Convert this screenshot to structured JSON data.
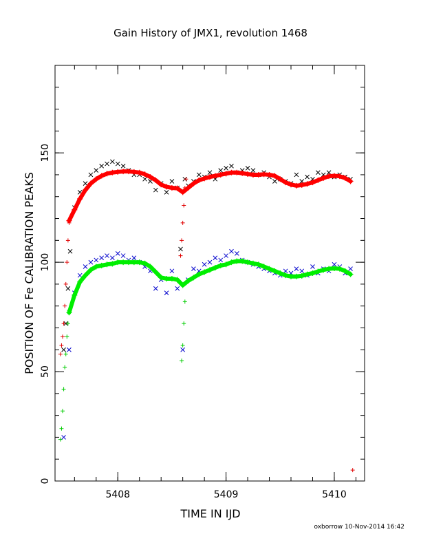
{
  "chart_data": {
    "type": "scatter",
    "title": "Gain History of JMX1, revolution 1468",
    "xlabel": "TIME IN IJD",
    "ylabel": "POSITION OF Fe CALIBRATION PEAKS",
    "footer": "oxborrow 10-Nov-2014 16:42",
    "xlim": [
      5407.42,
      5410.28
    ],
    "ylim": [
      0,
      190
    ],
    "xticks": [
      5408,
      5409,
      5410
    ],
    "xtick_labels": [
      "5408",
      "5409",
      "5410"
    ],
    "yticks": [
      0,
      50,
      100,
      150
    ],
    "ytick_labels": [
      "0",
      "50",
      "100",
      "150"
    ],
    "grid": false,
    "legend": "none",
    "series": [
      {
        "marker": "x",
        "color": "#000000",
        "x": [
          5407.5,
          5407.52,
          5407.54,
          5407.56,
          5407.6,
          5407.65,
          5407.7,
          5407.75,
          5407.8,
          5407.85,
          5407.9,
          5407.95,
          5408.0,
          5408.05,
          5408.1,
          5408.15,
          5408.2,
          5408.25,
          5408.3,
          5408.35,
          5408.4,
          5408.45,
          5408.5,
          5408.55,
          5408.58,
          5408.62,
          5408.65,
          5408.7,
          5408.75,
          5408.8,
          5408.85,
          5408.9,
          5408.95,
          5409.0,
          5409.05,
          5409.1,
          5409.15,
          5409.2,
          5409.25,
          5409.3,
          5409.35,
          5409.4,
          5409.45,
          5409.5,
          5409.55,
          5409.6,
          5409.65,
          5409.7,
          5409.75,
          5409.8,
          5409.85,
          5409.9,
          5409.95,
          5410.0,
          5410.05,
          5410.1,
          5410.15
        ],
        "y": [
          60,
          72,
          88,
          105,
          125,
          132,
          136,
          140,
          142,
          144,
          145,
          146,
          145,
          144,
          142,
          140,
          140,
          138,
          137,
          133,
          136,
          132,
          137,
          134,
          106,
          138,
          135,
          137,
          140,
          139,
          141,
          138,
          142,
          143,
          144,
          141,
          142,
          143,
          142,
          140,
          141,
          139,
          137,
          138,
          137,
          136,
          140,
          137,
          139,
          138,
          141,
          140,
          141,
          139,
          140,
          139,
          138
        ]
      },
      {
        "marker": "plus",
        "color": "#e00000",
        "x": [
          5407.47,
          5407.48,
          5407.49,
          5407.5,
          5407.51,
          5407.52,
          5407.53,
          5407.54,
          5407.55,
          5408.58,
          5408.59,
          5408.6,
          5408.61,
          5408.62,
          5408.63,
          5410.17
        ],
        "y": [
          58,
          62,
          66,
          72,
          80,
          90,
          100,
          110,
          118,
          103,
          110,
          118,
          126,
          134,
          138,
          5
        ]
      },
      {
        "marker": "plus",
        "color": "#00cc00",
        "x": [
          5407.47,
          5407.48,
          5407.49,
          5407.5,
          5407.51,
          5407.52,
          5407.53,
          5407.54,
          5407.55,
          5408.59,
          5408.6,
          5408.61,
          5408.62
        ],
        "y": [
          19,
          24,
          32,
          42,
          52,
          58,
          66,
          72,
          78,
          55,
          62,
          72,
          82
        ]
      },
      {
        "marker": "x",
        "color": "#0000cc",
        "x": [
          5407.5,
          5407.55,
          5407.6,
          5407.65,
          5407.7,
          5407.75,
          5407.8,
          5407.85,
          5407.9,
          5407.95,
          5408.0,
          5408.05,
          5408.1,
          5408.15,
          5408.2,
          5408.25,
          5408.3,
          5408.35,
          5408.4,
          5408.45,
          5408.5,
          5408.55,
          5408.6,
          5408.65,
          5408.7,
          5408.75,
          5408.8,
          5408.85,
          5408.9,
          5408.95,
          5409.0,
          5409.05,
          5409.1,
          5409.15,
          5409.2,
          5409.25,
          5409.3,
          5409.35,
          5409.4,
          5409.45,
          5409.5,
          5409.55,
          5409.6,
          5409.65,
          5409.7,
          5409.75,
          5409.8,
          5409.85,
          5409.9,
          5409.95,
          5410.0,
          5410.05,
          5410.1,
          5410.15
        ],
        "y": [
          20,
          60,
          86,
          94,
          98,
          100,
          101,
          102,
          103,
          102,
          104,
          103,
          101,
          102,
          100,
          98,
          96,
          88,
          92,
          86,
          96,
          88,
          60,
          92,
          97,
          96,
          99,
          100,
          102,
          101,
          103,
          105,
          104,
          101,
          100,
          99,
          98,
          97,
          96,
          95,
          94,
          96,
          95,
          97,
          96,
          94,
          98,
          95,
          97,
          96,
          99,
          98,
          95,
          97
        ]
      },
      {
        "marker": "plus-line",
        "color": "#ff0000",
        "x": [
          5407.55,
          5407.6,
          5407.65,
          5407.7,
          5407.75,
          5407.8,
          5407.85,
          5407.9,
          5407.95,
          5408.0,
          5408.05,
          5408.1,
          5408.15,
          5408.2,
          5408.25,
          5408.3,
          5408.35,
          5408.4,
          5408.45,
          5408.5,
          5408.55,
          5408.6,
          5408.65,
          5408.7,
          5408.75,
          5408.8,
          5408.85,
          5408.9,
          5408.95,
          5409.0,
          5409.05,
          5409.1,
          5409.15,
          5409.2,
          5409.25,
          5409.3,
          5409.35,
          5409.4,
          5409.45,
          5409.5,
          5409.55,
          5409.6,
          5409.65,
          5409.7,
          5409.75,
          5409.8,
          5409.85,
          5409.9,
          5409.95,
          5410.0,
          5410.05,
          5410.1,
          5410.15
        ],
        "y": [
          119,
          124,
          129,
          133,
          136,
          138,
          139.5,
          140.5,
          141,
          141.3,
          141.5,
          141.5,
          141.3,
          141,
          140.2,
          139,
          137.5,
          135.5,
          134.5,
          134,
          133.8,
          132,
          134,
          136,
          137.5,
          138.3,
          139,
          139.5,
          140,
          140.5,
          141,
          141,
          140.7,
          140.3,
          140,
          140,
          140.2,
          140,
          139.5,
          138,
          136.5,
          135.5,
          135,
          135.3,
          135.8,
          136.5,
          137.5,
          138.5,
          139.3,
          139.5,
          139.3,
          138.5,
          137
        ]
      },
      {
        "marker": "plus-line",
        "color": "#00ee00",
        "x": [
          5407.55,
          5407.6,
          5407.65,
          5407.7,
          5407.75,
          5407.8,
          5407.85,
          5407.9,
          5407.95,
          5408.0,
          5408.05,
          5408.1,
          5408.15,
          5408.2,
          5408.25,
          5408.3,
          5408.35,
          5408.4,
          5408.45,
          5408.5,
          5408.55,
          5408.6,
          5408.65,
          5408.7,
          5408.75,
          5408.8,
          5408.85,
          5408.9,
          5408.95,
          5409.0,
          5409.05,
          5409.1,
          5409.15,
          5409.2,
          5409.25,
          5409.3,
          5409.35,
          5409.4,
          5409.45,
          5409.5,
          5409.55,
          5409.6,
          5409.65,
          5409.7,
          5409.75,
          5409.8,
          5409.85,
          5409.9,
          5409.95,
          5410.0,
          5410.05,
          5410.1,
          5410.15
        ],
        "y": [
          77,
          85,
          91,
          94,
          96.5,
          98,
          98.5,
          99,
          99.3,
          100,
          100,
          100,
          100,
          100,
          99.5,
          98,
          95.5,
          93,
          92.5,
          92.5,
          92,
          89.5,
          91.5,
          93,
          94.5,
          95.5,
          96.5,
          97.5,
          98.5,
          99,
          100,
          100.5,
          100.5,
          100,
          99.5,
          99,
          98,
          97,
          96,
          95,
          94,
          93.5,
          93.5,
          93.8,
          94.5,
          95,
          95.8,
          96.5,
          97,
          97.2,
          97,
          96,
          94.5
        ]
      }
    ]
  }
}
